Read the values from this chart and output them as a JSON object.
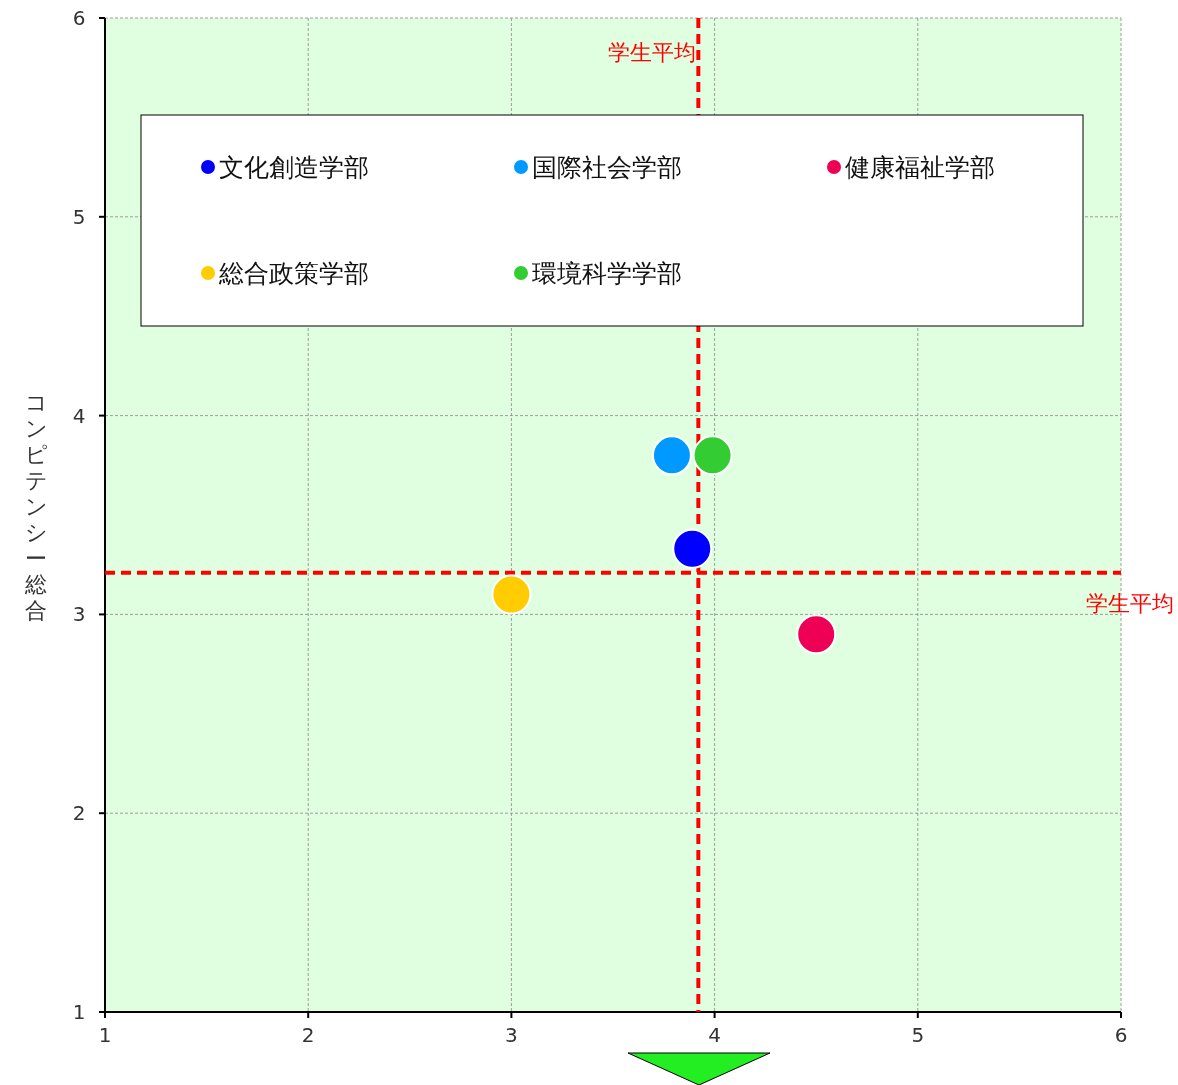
{
  "chart_data": {
    "type": "scatter",
    "ylabel": "コンピテンシー総合",
    "xlim": [
      1,
      6
    ],
    "ylim": [
      1,
      6
    ],
    "xticks": [
      1,
      2,
      3,
      4,
      5,
      6
    ],
    "yticks": [
      1,
      2,
      3,
      4,
      5,
      6
    ],
    "grid": true,
    "legend": "top",
    "marker": "circle",
    "series": [
      {
        "name": "文化創造学部",
        "color": "#0000ff",
        "x": [
          3.89
        ],
        "values": [
          3.33
        ]
      },
      {
        "name": "国際社会学部",
        "color": "#0099ff",
        "x": [
          3.79
        ],
        "values": [
          3.8
        ]
      },
      {
        "name": "健康福祉学部",
        "color": "#ee0055",
        "x": [
          4.5
        ],
        "values": [
          2.9
        ]
      },
      {
        "name": "総合政策学部",
        "color": "#ffcc00",
        "x": [
          3.0
        ],
        "values": [
          3.1
        ]
      },
      {
        "name": "環境科学学部",
        "color": "#33cc33",
        "x": [
          3.99
        ],
        "values": [
          3.8
        ]
      }
    ],
    "ref_lines": [
      {
        "axis": "x",
        "value": 3.92,
        "label": "学生平均",
        "color": "#ff0000",
        "line_style": "dashed"
      },
      {
        "axis": "y",
        "value": 3.21,
        "label": "学生平均",
        "color": "#ff0000",
        "line_style": "dashed"
      }
    ]
  }
}
